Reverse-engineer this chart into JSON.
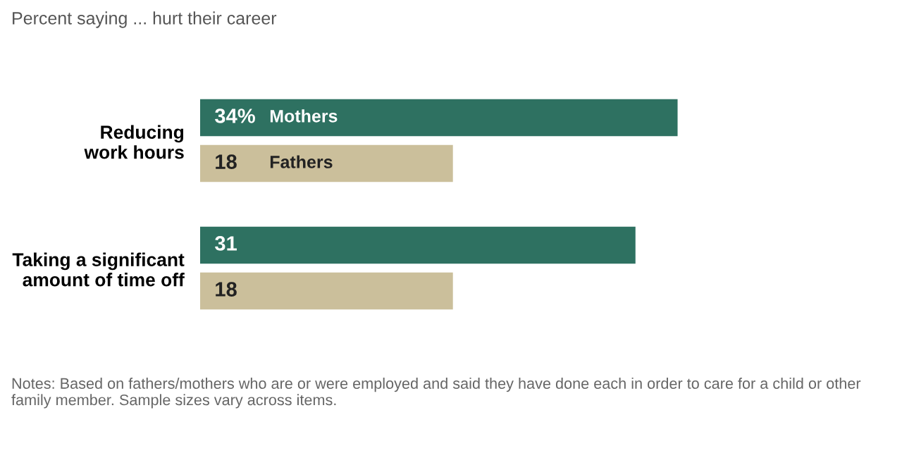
{
  "chart_data": {
    "type": "bar",
    "orientation": "horizontal",
    "title": "Percent saying ... hurt their career",
    "categories": [
      "Reducing\nwork hours",
      "Taking a significant\namount of time off"
    ],
    "series": [
      {
        "name": "Mothers",
        "color": "#2e7161",
        "values": [
          34,
          31
        ],
        "value_labels": [
          "34%",
          "31"
        ]
      },
      {
        "name": "Fathers",
        "color": "#cbbf9b",
        "values": [
          18,
          18
        ],
        "value_labels": [
          "18",
          "18"
        ]
      }
    ],
    "annotations": [
      "Notes: Based on fathers/mothers who are or were employed and said they have done each in order to care for a child or other family member. Sample sizes vary across items."
    ],
    "grid": false
  }
}
